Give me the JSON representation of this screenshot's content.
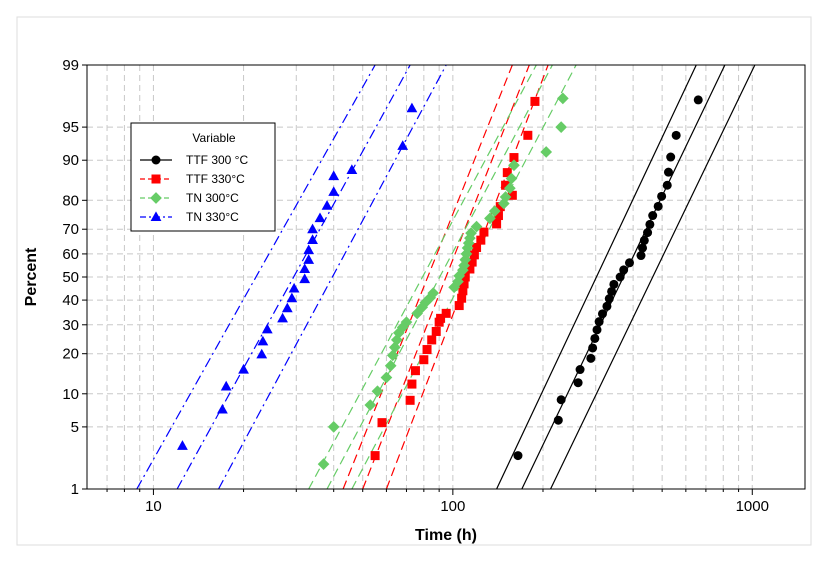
{
  "chart_data": {
    "type": "scatter",
    "title": "",
    "xlabel": "Time (h)",
    "ylabel": "Percent",
    "x_scale": "log",
    "y_scale": "probability",
    "xlim": [
      6,
      1500
    ],
    "ylim": [
      1,
      99
    ],
    "x_ticks": [
      10,
      100,
      1000
    ],
    "x_tick_labels": [
      "10",
      "100",
      "1000"
    ],
    "y_ticks": [
      1,
      5,
      10,
      20,
      30,
      40,
      50,
      60,
      70,
      80,
      90,
      95,
      99
    ],
    "y_tick_labels": [
      "1",
      "5",
      "10",
      "20",
      "30",
      "40",
      "50",
      "60",
      "70",
      "80",
      "90",
      "95",
      "99"
    ],
    "grid": true,
    "legend_title": "Variable",
    "legend_position": "top-left",
    "series": [
      {
        "name": "TTF 300 °C",
        "color": "#000000",
        "marker": "circle",
        "line_style": "solid",
        "fit": {
          "lower_left": [
            140,
            1
          ],
          "lower_right": [
            650,
            99
          ],
          "center_left": [
            170,
            1
          ],
          "center_right": [
            810,
            99
          ],
          "upper_left": [
            212,
            1
          ],
          "upper_right": [
            1020,
            99
          ]
        },
        "points": [
          [
            165,
            2.5
          ],
          [
            225,
            5.8
          ],
          [
            230,
            8.9
          ],
          [
            262,
            12.3
          ],
          [
            266,
            15.5
          ],
          [
            289,
            18.6
          ],
          [
            293,
            21.8
          ],
          [
            298,
            25
          ],
          [
            303,
            28.1
          ],
          [
            308,
            31.2
          ],
          [
            316,
            34.3
          ],
          [
            327,
            37.4
          ],
          [
            333,
            40.6
          ],
          [
            339,
            43.7
          ],
          [
            345,
            46.8
          ],
          [
            362,
            50
          ],
          [
            372,
            53.1
          ],
          [
            389,
            56.2
          ],
          [
            425,
            59.3
          ],
          [
            430,
            62.5
          ],
          [
            436,
            65.6
          ],
          [
            447,
            68.7
          ],
          [
            455,
            71.8
          ],
          [
            465,
            75
          ],
          [
            485,
            78.1
          ],
          [
            498,
            81.2
          ],
          [
            520,
            84.3
          ],
          [
            525,
            87.5
          ],
          [
            534,
            90.6
          ],
          [
            557,
            94
          ],
          [
            660,
            97.4
          ]
        ]
      },
      {
        "name": "TTF 330°C",
        "color": "#ff0000",
        "marker": "square",
        "line_style": "dashed",
        "fit": {
          "lower_left": [
            43,
            1
          ],
          "lower_right": [
            158,
            99
          ],
          "center_left": [
            50,
            1
          ],
          "center_right": [
            180,
            99
          ],
          "upper_left": [
            60,
            1
          ],
          "upper_right": [
            208,
            99
          ]
        },
        "points": [
          [
            55,
            2.5
          ],
          [
            58,
            5.5
          ],
          [
            72,
            8.8
          ],
          [
            73,
            12
          ],
          [
            75,
            15.2
          ],
          [
            80,
            18.2
          ],
          [
            82,
            21.3
          ],
          [
            85,
            24.5
          ],
          [
            88,
            27.5
          ],
          [
            90,
            31
          ],
          [
            91,
            32.5
          ],
          [
            95,
            34.5
          ],
          [
            105,
            37.7
          ],
          [
            107,
            40.8
          ],
          [
            108,
            44
          ],
          [
            109,
            47
          ],
          [
            110,
            50
          ],
          [
            114,
            53.5
          ],
          [
            116,
            56.5
          ],
          [
            118,
            59.6
          ],
          [
            120,
            62.7
          ],
          [
            124,
            65.7
          ],
          [
            127,
            68.9
          ],
          [
            140,
            72
          ],
          [
            142,
            75
          ],
          [
            144,
            78
          ],
          [
            158,
            81.5
          ],
          [
            150,
            84.3
          ],
          [
            152,
            87.4
          ],
          [
            160,
            90.5
          ],
          [
            178,
            94
          ],
          [
            188,
            97.3
          ]
        ]
      },
      {
        "name": "TN 300°C",
        "color": "#66cc66",
        "marker": "diamond",
        "line_style": "dashed",
        "fit": {
          "lower_left": [
            33,
            1
          ],
          "lower_right": [
            190,
            99
          ],
          "center_left": [
            38,
            1
          ],
          "center_right": [
            215,
            99
          ],
          "upper_left": [
            46,
            1
          ],
          "upper_right": [
            258,
            99
          ]
        },
        "points": [
          [
            37,
            2
          ],
          [
            40,
            5
          ],
          [
            53,
            8
          ],
          [
            56,
            10.5
          ],
          [
            60,
            13.5
          ],
          [
            62,
            16.5
          ],
          [
            63,
            19.5
          ],
          [
            64,
            22
          ],
          [
            65,
            24.5
          ],
          [
            66,
            27
          ],
          [
            68,
            29
          ],
          [
            70,
            31
          ],
          [
            76,
            34.5
          ],
          [
            79,
            37
          ],
          [
            81,
            39
          ],
          [
            84,
            41
          ],
          [
            86,
            43
          ],
          [
            101,
            45.5
          ],
          [
            104,
            48
          ],
          [
            105,
            50.5
          ],
          [
            108,
            53
          ],
          [
            109,
            55
          ],
          [
            110,
            57.5
          ],
          [
            111,
            60
          ],
          [
            112,
            62.5
          ],
          [
            113,
            64.5
          ],
          [
            114,
            66.5
          ],
          [
            115,
            68.5
          ],
          [
            120,
            71
          ],
          [
            133,
            74
          ],
          [
            138,
            76.5
          ],
          [
            148,
            79
          ],
          [
            150,
            81
          ],
          [
            155,
            83.5
          ],
          [
            157,
            86
          ],
          [
            160,
            89
          ],
          [
            205,
            91.5
          ],
          [
            230,
            95
          ],
          [
            233,
            97.5
          ]
        ]
      },
      {
        "name": "TN 330°C",
        "color": "#0000ff",
        "marker": "triangle",
        "line_style": "dash-dot",
        "fit": {
          "lower_left": [
            8.8,
            1
          ],
          "lower_right": [
            55,
            99
          ],
          "center_left": [
            12,
            1
          ],
          "center_right": [
            72,
            99
          ],
          "upper_left": [
            16.5,
            1
          ],
          "upper_right": [
            95,
            99
          ]
        },
        "points": [
          [
            12.5,
            3.2
          ],
          [
            17,
            7.3
          ],
          [
            17.5,
            11.5
          ],
          [
            20,
            15.5
          ],
          [
            23,
            19.8
          ],
          [
            23.2,
            24
          ],
          [
            24,
            28.3
          ],
          [
            27,
            32.5
          ],
          [
            28,
            36.6
          ],
          [
            29,
            40.8
          ],
          [
            29.5,
            45
          ],
          [
            32,
            49.1
          ],
          [
            32,
            53.5
          ],
          [
            33,
            57.5
          ],
          [
            33,
            61.6
          ],
          [
            34,
            65.8
          ],
          [
            34,
            70
          ],
          [
            36,
            74.1
          ],
          [
            38,
            78.3
          ],
          [
            40,
            82.5
          ],
          [
            40,
            86.6
          ],
          [
            46,
            88
          ],
          [
            68,
            92.5
          ],
          [
            73,
            96.8
          ]
        ]
      }
    ]
  }
}
